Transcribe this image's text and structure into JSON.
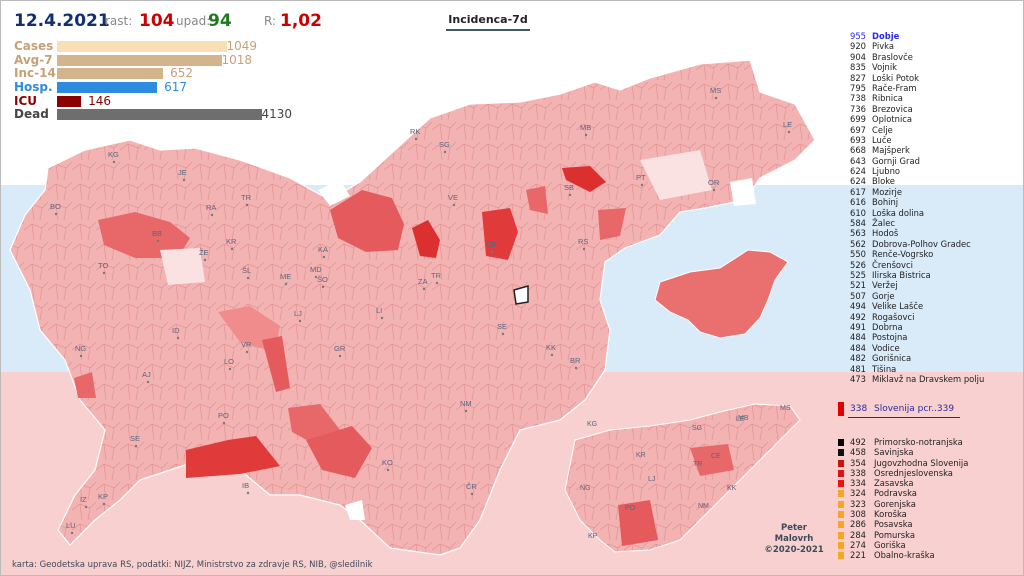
{
  "header": {
    "date": "12.4.2021",
    "rast_label": "rast:",
    "rast_value": "104",
    "upad_label": "upad:",
    "upad_value": "94",
    "r_label": "R:",
    "r_value": "1,02",
    "title": "Incidenca-7d"
  },
  "bars": [
    {
      "name": "Cases",
      "value": 1049,
      "label": "1049",
      "color": "#f8dfb4",
      "textcolor": "#c8a078"
    },
    {
      "name": "Avg-7",
      "value": 1018,
      "label": "1018",
      "color": "#d3b48d",
      "textcolor": "#c8a078"
    },
    {
      "name": "Inc-14",
      "value": 652,
      "label": "652",
      "color": "#d3b48d",
      "textcolor": "#c8a078"
    },
    {
      "name": "Hosp.",
      "value": 617,
      "label": "617",
      "color": "#2d8be0",
      "textcolor": "#2d8be0"
    },
    {
      "name": "ICU",
      "value": 146,
      "label": "146",
      "color": "#8b0000",
      "textcolor": "#8b0000"
    },
    {
      "name": "Dead",
      "value": 4130,
      "label": "4130",
      "color": "#6e6e6e",
      "textcolor": "#444444"
    }
  ],
  "municipalities": [
    {
      "value": "955",
      "name": "Dobje"
    },
    {
      "value": "920",
      "name": "Pivka"
    },
    {
      "value": "904",
      "name": "Braslovče"
    },
    {
      "value": "835",
      "name": "Vojnik"
    },
    {
      "value": "827",
      "name": "Loški Potok"
    },
    {
      "value": "795",
      "name": "Rače-Fram"
    },
    {
      "value": "738",
      "name": "Ribnica"
    },
    {
      "value": "736",
      "name": "Brezovica"
    },
    {
      "value": "699",
      "name": "Oplotnica"
    },
    {
      "value": "697",
      "name": "Celje"
    },
    {
      "value": "693",
      "name": "Luče"
    },
    {
      "value": "668",
      "name": "Majšperk"
    },
    {
      "value": "643",
      "name": "Gornji Grad"
    },
    {
      "value": "624",
      "name": "Ljubno"
    },
    {
      "value": "624",
      "name": "Bloke"
    },
    {
      "value": "617",
      "name": "Mozirje"
    },
    {
      "value": "616",
      "name": "Bohinj"
    },
    {
      "value": "610",
      "name": "Loška dolina"
    },
    {
      "value": "584",
      "name": "Žalec"
    },
    {
      "value": "563",
      "name": "Hodoš"
    },
    {
      "value": "562",
      "name": "Dobrova-Polhov Gradec"
    },
    {
      "value": "550",
      "name": "Renče-Vogrsko"
    },
    {
      "value": "526",
      "name": "Črenšovci"
    },
    {
      "value": "525",
      "name": "Ilirska Bistrica"
    },
    {
      "value": "521",
      "name": "Veržej"
    },
    {
      "value": "507",
      "name": "Gorje"
    },
    {
      "value": "494",
      "name": "Velike Lašče"
    },
    {
      "value": "492",
      "name": "Rogašovci"
    },
    {
      "value": "491",
      "name": "Dobrna"
    },
    {
      "value": "484",
      "name": "Postojna"
    },
    {
      "value": "484",
      "name": "Vodice"
    },
    {
      "value": "482",
      "name": "Gorišnica"
    },
    {
      "value": "481",
      "name": "Tišina"
    },
    {
      "value": "473",
      "name": "Miklavž na Dravskem polju"
    }
  ],
  "slovenia": {
    "value": "338",
    "label": "Slovenija pcr..339"
  },
  "regions": [
    {
      "value": "492",
      "name": "Primorsko-notranjska",
      "color": "#000000"
    },
    {
      "value": "458",
      "name": "Savinjska",
      "color": "#111111"
    },
    {
      "value": "354",
      "name": "Jugovzhodna Slovenija",
      "color": "#cc1111"
    },
    {
      "value": "338",
      "name": "Osrednjeslovenska",
      "color": "#dd1111"
    },
    {
      "value": "334",
      "name": "Zasavska",
      "color": "#ee1111"
    },
    {
      "value": "324",
      "name": "Podravska",
      "color": "#f5a623"
    },
    {
      "value": "323",
      "name": "Gorenjska",
      "color": "#f5a623"
    },
    {
      "value": "308",
      "name": "Koroška",
      "color": "#f5a623"
    },
    {
      "value": "286",
      "name": "Posavska",
      "color": "#f5a623"
    },
    {
      "value": "284",
      "name": "Pomurska",
      "color": "#f5a623"
    },
    {
      "value": "274",
      "name": "Goriška",
      "color": "#f5a623"
    },
    {
      "value": "221",
      "name": "Obalno-kraška",
      "color": "#f5a623"
    }
  ],
  "map_labels": [
    "KG",
    "JE",
    "RA",
    "BO",
    "BB",
    "TR",
    "KR",
    "ŽE",
    "TO",
    "ŠL",
    "ME",
    "KA",
    "MD",
    "ŠO",
    "LJ",
    "ID",
    "VR",
    "LO",
    "NG",
    "AJ",
    "PO",
    "CE",
    "ZA",
    "TR",
    "LI",
    "SE",
    "KK",
    "BR",
    "GR",
    "NM",
    "KO",
    "ČR",
    "IB",
    "IZ",
    "KP",
    "LU",
    "SE",
    "RK",
    "SG",
    "MB",
    "MS",
    "LE",
    "OR",
    "PT",
    "SB",
    "VE",
    "RS"
  ],
  "map_small_labels": [
    "MS",
    "LE",
    "MB",
    "KG",
    "SG",
    "CE",
    "TR",
    "KR",
    "KK",
    "LJ",
    "NM",
    "NG",
    "PO",
    "KP"
  ],
  "author": {
    "line1": "Peter",
    "line2": "Malovrh",
    "line3": "©2020-2021"
  },
  "credit": "karta: Geodetska uprava RS,  podatki: NIJZ, Ministrstvo za zdravje RS, NIB, @sledilnik",
  "colors": {
    "navy": "#12306e",
    "red": "#cc0000",
    "green": "#1f7a1f",
    "dark_red": "#8b0000",
    "bar_tan": "#d3b48d"
  }
}
